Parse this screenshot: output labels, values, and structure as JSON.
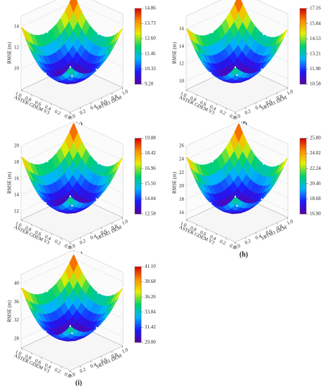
{
  "chart_data": [
    {
      "type": "surface",
      "label": "(e)",
      "zlabel": "RMSE (m)",
      "xlabel": "ASTER GDEM V3",
      "ylabel": "SRTM1 DEM",
      "x": [
        0,
        0.5,
        1
      ],
      "y": [
        0,
        0.5,
        1
      ],
      "z": [
        [
          12.31,
          10.62,
          14.01
        ],
        [
          10.9,
          9.2,
          12.31
        ],
        [
          13.73,
          12.03,
          14.86
        ]
      ],
      "zlim": [
        8,
        15
      ],
      "zticks": [
        10,
        12,
        14
      ],
      "xticks": [
        {
          "value": 0,
          "label": "0.0"
        },
        0.2,
        0.4,
        0.6,
        0.8,
        {
          "value": 1,
          "label": "1.0"
        }
      ],
      "yticks": [
        {
          "value": 0,
          "label": "0.0"
        },
        0.2,
        0.4,
        0.6,
        0.8,
        {
          "value": 1,
          "label": "1.0"
        }
      ],
      "colorbar_ticks": [
        {
          "value": 9.2,
          "label": "9.20"
        },
        10.33,
        11.46,
        {
          "value": 12.6,
          "label": "12.60"
        },
        13.73,
        14.86
      ],
      "colormap": [
        "#5b009e",
        "#1a1aff",
        "#00b4ff",
        "#00d26a",
        "#e8f000",
        "#ff8c00",
        "#d40000"
      ]
    },
    {
      "type": "surface",
      "label": "(f)",
      "zlabel": "RMSE (m)",
      "xlabel": "ASTER GDEM V3",
      "ylabel": "SRTM1 DEM",
      "x": [
        0,
        0.5,
        1
      ],
      "y": [
        0,
        0.5,
        1
      ],
      "z": [
        [
          14.2,
          12.23,
          16.17
        ],
        [
          12.55,
          10.58,
          14.2
        ],
        [
          15.84,
          13.87,
          17.16
        ]
      ],
      "zlim": [
        9,
        17.5
      ],
      "zticks": [
        10,
        12,
        14,
        16
      ],
      "xticks": [
        {
          "value": 0,
          "label": "0.0"
        },
        0.2,
        0.4,
        0.6,
        0.8,
        {
          "value": 1,
          "label": "1.0"
        }
      ],
      "yticks": [
        {
          "value": 0,
          "label": "0.0"
        },
        0.2,
        0.4,
        0.6,
        0.8,
        {
          "value": 1,
          "label": "1.0"
        }
      ],
      "colorbar_ticks": [
        10.58,
        {
          "value": 11.9,
          "label": "11.90"
        },
        13.21,
        14.53,
        15.84,
        17.16
      ],
      "colormap": [
        "#5b009e",
        "#1a1aff",
        "#00b4ff",
        "#00d26a",
        "#e8f000",
        "#ff8c00",
        "#d40000"
      ]
    },
    {
      "type": "surface",
      "label": "(g)",
      "zlabel": "RMSE (m)",
      "xlabel": "ASTER GDEM V3",
      "ylabel": "SRTM1 DEM",
      "x": [
        0,
        0.5,
        1
      ],
      "y": [
        0,
        0.5,
        1
      ],
      "z": [
        [
          16.6,
          14.41,
          18.79
        ],
        [
          14.77,
          12.58,
          16.6
        ],
        [
          18.42,
          16.23,
          19.88
        ]
      ],
      "zlim": [
        11,
        20
      ],
      "zticks": [
        12,
        14,
        16,
        18,
        20
      ],
      "xticks": [
        {
          "value": 0,
          "label": "0.0"
        },
        0.2,
        0.4,
        0.6,
        0.8,
        {
          "value": 1,
          "label": "1.0"
        }
      ],
      "yticks": [
        {
          "value": 0,
          "label": "0.0"
        },
        0.2,
        0.4,
        0.6,
        0.8,
        {
          "value": 1,
          "label": "1.0"
        }
      ],
      "colorbar_ticks": [
        12.58,
        14.04,
        {
          "value": 15.5,
          "label": "15.50"
        },
        16.96,
        18.42,
        19.88
      ],
      "colormap": [
        "#5b009e",
        "#1a1aff",
        "#00b4ff",
        "#00d26a",
        "#e8f000",
        "#ff8c00",
        "#d40000"
      ]
    },
    {
      "type": "surface",
      "label": "(h)",
      "zlabel": "RMSE (m)",
      "xlabel": "ASTER GDEM V3",
      "ylabel": "SRTM1 DEM",
      "x": [
        0,
        0.5,
        1
      ],
      "y": [
        0,
        0.5,
        1
      ],
      "z": [
        [
          21.8,
          19.13,
          24.47
        ],
        [
          19.57,
          16.9,
          21.8
        ],
        [
          24.02,
          21.35,
          25.8
        ]
      ],
      "zlim": [
        15,
        26
      ],
      "zticks": [
        16,
        18,
        20,
        22,
        24,
        26
      ],
      "xticks": [
        {
          "value": 0,
          "label": "0.0"
        },
        0.2,
        0.4,
        0.6,
        0.8,
        {
          "value": 1,
          "label": "1.0"
        }
      ],
      "yticks": [
        {
          "value": 0,
          "label": "0.0"
        },
        0.2,
        0.4,
        0.6,
        0.8,
        {
          "value": 1,
          "label": "1.0"
        }
      ],
      "colorbar_ticks": [
        {
          "value": 16.9,
          "label": "16.90"
        },
        18.68,
        20.46,
        22.24,
        24.02,
        {
          "value": 25.8,
          "label": "25.80"
        }
      ],
      "colormap": [
        "#5b009e",
        "#1a1aff",
        "#00b4ff",
        "#00d26a",
        "#e8f000",
        "#ff8c00",
        "#d40000"
      ]
    },
    {
      "type": "surface",
      "label": "(i)",
      "zlabel": "RMSE (m)",
      "xlabel": "ASTER GDEM V3",
      "ylabel": "SRTM1 DEM",
      "x": [
        0,
        0.5,
        1
      ],
      "y": [
        0,
        0.5,
        1
      ],
      "z": [
        [
          35.66,
          32.03,
          39.29
        ],
        [
          32.63,
          29.0,
          35.66
        ],
        [
          38.68,
          35.05,
          41.1
        ]
      ],
      "zlim": [
        26,
        42
      ],
      "zticks": [
        28,
        32,
        36,
        40
      ],
      "xticks": [
        {
          "value": 0,
          "label": "0.0"
        },
        0.2,
        0.4,
        0.6,
        0.8,
        {
          "value": 1,
          "label": "1.0"
        }
      ],
      "yticks": [
        {
          "value": 0,
          "label": "0.0"
        },
        0.2,
        0.4,
        0.6,
        0.8,
        {
          "value": 1,
          "label": "1.0"
        }
      ],
      "colorbar_ticks": [
        {
          "value": 29,
          "label": "29.00"
        },
        31.42,
        33.84,
        36.26,
        38.68,
        {
          "value": 41.1,
          "label": "41.10"
        }
      ],
      "colormap": [
        "#5b009e",
        "#1a1aff",
        "#00b4ff",
        "#00d26a",
        "#e8f000",
        "#ff8c00",
        "#d40000"
      ]
    }
  ]
}
